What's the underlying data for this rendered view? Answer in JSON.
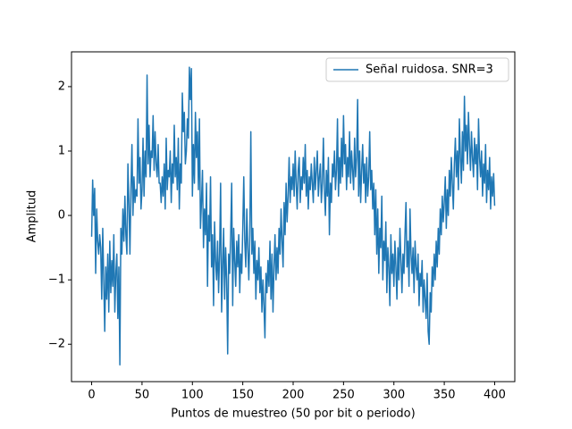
{
  "chart_data": {
    "type": "line",
    "xlabel": "Puntos de muestreo (50 por bit o periodo)",
    "ylabel": "Amplitud",
    "xlim": [
      -20,
      420
    ],
    "ylim": [
      -2.58,
      2.54
    ],
    "xticks": [
      0,
      50,
      100,
      150,
      200,
      250,
      300,
      350,
      400
    ],
    "yticks": [
      {
        "value": -2,
        "label": "−2"
      },
      {
        "value": -1,
        "label": "−1"
      },
      0,
      1,
      2
    ],
    "legend": "upper right",
    "x": [
      0,
      1,
      2,
      3,
      4,
      5,
      6,
      7,
      8,
      9,
      10,
      11,
      12,
      13,
      14,
      15,
      16,
      17,
      18,
      19,
      20,
      21,
      22,
      23,
      24,
      25,
      26,
      27,
      28,
      29,
      30,
      31,
      32,
      33,
      34,
      35,
      36,
      37,
      38,
      39,
      40,
      41,
      42,
      43,
      44,
      45,
      46,
      47,
      48,
      49,
      50,
      51,
      52,
      53,
      54,
      55,
      56,
      57,
      58,
      59,
      60,
      61,
      62,
      63,
      64,
      65,
      66,
      67,
      68,
      69,
      70,
      71,
      72,
      73,
      74,
      75,
      76,
      77,
      78,
      79,
      80,
      81,
      82,
      83,
      84,
      85,
      86,
      87,
      88,
      89,
      90,
      91,
      92,
      93,
      94,
      95,
      96,
      97,
      98,
      99,
      100,
      101,
      102,
      103,
      104,
      105,
      106,
      107,
      108,
      109,
      110,
      111,
      112,
      113,
      114,
      115,
      116,
      117,
      118,
      119,
      120,
      121,
      122,
      123,
      124,
      125,
      126,
      127,
      128,
      129,
      130,
      131,
      132,
      133,
      134,
      135,
      136,
      137,
      138,
      139,
      140,
      141,
      142,
      143,
      144,
      145,
      146,
      147,
      148,
      149,
      150,
      151,
      152,
      153,
      154,
      155,
      156,
      157,
      158,
      159,
      160,
      161,
      162,
      163,
      164,
      165,
      166,
      167,
      168,
      169,
      170,
      171,
      172,
      173,
      174,
      175,
      176,
      177,
      178,
      179,
      180,
      181,
      182,
      183,
      184,
      185,
      186,
      187,
      188,
      189,
      190,
      191,
      192,
      193,
      194,
      195,
      196,
      197,
      198,
      199,
      200,
      201,
      202,
      203,
      204,
      205,
      206,
      207,
      208,
      209,
      210,
      211,
      212,
      213,
      214,
      215,
      216,
      217,
      218,
      219,
      220,
      221,
      222,
      223,
      224,
      225,
      226,
      227,
      228,
      229,
      230,
      231,
      232,
      233,
      234,
      235,
      236,
      237,
      238,
      239,
      240,
      241,
      242,
      243,
      244,
      245,
      246,
      247,
      248,
      249,
      250,
      251,
      252,
      253,
      254,
      255,
      256,
      257,
      258,
      259,
      260,
      261,
      262,
      263,
      264,
      265,
      266,
      267,
      268,
      269,
      270,
      271,
      272,
      273,
      274,
      275,
      276,
      277,
      278,
      279,
      280,
      281,
      282,
      283,
      284,
      285,
      286,
      287,
      288,
      289,
      290,
      291,
      292,
      293,
      294,
      295,
      296,
      297,
      298,
      299,
      300,
      301,
      302,
      303,
      304,
      305,
      306,
      307,
      308,
      309,
      310,
      311,
      312,
      313,
      314,
      315,
      316,
      317,
      318,
      319,
      320,
      321,
      322,
      323,
      324,
      325,
      326,
      327,
      328,
      329,
      330,
      331,
      332,
      333,
      334,
      335,
      336,
      337,
      338,
      339,
      340,
      341,
      342,
      343,
      344,
      345,
      346,
      347,
      348,
      349,
      350,
      351,
      352,
      353,
      354,
      355,
      356,
      357,
      358,
      359,
      360,
      361,
      362,
      363,
      364,
      365,
      366,
      367,
      368,
      369,
      370,
      371,
      372,
      373,
      374,
      375,
      376,
      377,
      378,
      379,
      380,
      381,
      382,
      383,
      384,
      385,
      386,
      387,
      388,
      389,
      390,
      391,
      392,
      393,
      394,
      395,
      396,
      397,
      398,
      399,
      400
    ],
    "series": [
      {
        "name": "Señal ruidosa. SNR=3",
        "color": "#1f77b4",
        "values": [
          -0.33,
          0.55,
          0.0,
          0.42,
          -0.9,
          0.1,
          -0.4,
          -0.6,
          -0.3,
          -0.5,
          -1.3,
          -0.2,
          -1.0,
          -1.8,
          -0.8,
          -1.3,
          -0.6,
          -1.5,
          -0.4,
          -1.2,
          -0.7,
          -1.1,
          -0.3,
          -1.5,
          -0.9,
          -0.6,
          -1.6,
          -0.8,
          -2.32,
          -0.2,
          -0.6,
          0.1,
          -0.4,
          0.3,
          -0.3,
          -0.6,
          0.8,
          0.2,
          -0.6,
          0.4,
          1.1,
          0.0,
          0.6,
          0.2,
          0.4,
          0.3,
          1.5,
          0.5,
          0.9,
          0.1,
          0.4,
          1.2,
          0.3,
          1.0,
          0.6,
          2.18,
          0.8,
          1.4,
          0.6,
          1.0,
          0.9,
          1.55,
          0.7,
          1.3,
          0.8,
          0.6,
          1.1,
          0.5,
          0.5,
          0.2,
          0.6,
          0.3,
          0.8,
          0.1,
          1.2,
          0.4,
          0.7,
          0.6,
          1.0,
          0.2,
          0.8,
          0.5,
          1.4,
          0.6,
          0.9,
          0.4,
          1.2,
          0.1,
          0.8,
          0.5,
          1.9,
          1.3,
          1.6,
          0.8,
          1.0,
          1.5,
          1.2,
          2.3,
          1.8,
          2.28,
          0.3,
          1.1,
          0.5,
          1.6,
          0.9,
          1.3,
          0.4,
          1.5,
          -0.2,
          0.2,
          0.7,
          -0.5,
          0.1,
          -0.3,
          0.5,
          -1.1,
          0.0,
          -0.4,
          0.6,
          -0.8,
          -0.3,
          -1.4,
          -0.1,
          -0.7,
          -1.0,
          -0.4,
          -1.2,
          -0.6,
          0.5,
          -1.5,
          -0.8,
          -0.2,
          -1.3,
          -0.5,
          -1.0,
          -2.15,
          -0.6,
          -0.9,
          -0.3,
          0.5,
          -1.4,
          -0.2,
          -0.7,
          -1.1,
          -0.4,
          -0.8,
          -0.3,
          -1.2,
          -0.6,
          -0.9,
          -0.2,
          0.6,
          -0.4,
          -0.8,
          0.1,
          -0.5,
          -1.0,
          -0.3,
          1.3,
          -0.6,
          -0.2,
          -0.9,
          -0.4,
          -1.3,
          -0.7,
          -1.0,
          -0.5,
          -1.2,
          -0.8,
          -1.5,
          -1.0,
          -1.4,
          -1.9,
          -0.9,
          -1.2,
          -0.7,
          -1.1,
          -0.4,
          -1.3,
          -0.6,
          -1.5,
          -0.8,
          -0.3,
          -1.0,
          -0.5,
          -0.9,
          -0.2,
          -0.6,
          0.1,
          -0.4,
          -0.8,
          0.2,
          -0.3,
          0.5,
          -0.1,
          0.3,
          0.9,
          0.2,
          0.6,
          0.4,
          0.8,
          0.3,
          1.0,
          0.5,
          0.1,
          0.7,
          0.9,
          0.2,
          0.6,
          0.4,
          0.9,
          0.5,
          1.1,
          0.3,
          0.7,
          0.1,
          0.6,
          0.4,
          0.8,
          0.5,
          0.2,
          0.9,
          0.4,
          0.7,
          1.0,
          0.3,
          0.6,
          0.8,
          0.2,
          0.5,
          1.2,
          0.4,
          0.0,
          0.7,
          0.3,
          0.9,
          -0.3,
          0.5,
          0.2,
          0.8,
          0.6,
          1.0,
          0.4,
          0.7,
          1.5,
          0.3,
          0.9,
          0.5,
          1.2,
          0.6,
          1.55,
          0.8,
          1.1,
          0.4,
          0.9,
          0.6,
          1.3,
          0.5,
          1.0,
          0.7,
          0.4,
          1.2,
          0.6,
          0.9,
          1.8,
          0.3,
          1.0,
          0.2,
          0.7,
          1.1,
          0.5,
          0.8,
          0.2,
          0.9,
          0.3,
          0.6,
          1.3,
          0.4,
          0.7,
          0.1,
          0.5,
          -0.3,
          0.4,
          -0.6,
          0.1,
          -0.9,
          -0.2,
          -0.5,
          0.3,
          -1.0,
          -0.4,
          -0.7,
          -0.1,
          -1.2,
          -0.5,
          -0.8,
          -1.4,
          -0.3,
          -0.9,
          -0.6,
          -1.1,
          -0.4,
          -0.8,
          -1.3,
          -0.5,
          -1.0,
          -0.2,
          -0.7,
          -1.2,
          -0.6,
          -0.9,
          -0.3,
          0.2,
          -0.8,
          -0.4,
          -1.1,
          0.1,
          -0.6,
          -0.9,
          -0.5,
          -1.2,
          -0.4,
          -0.8,
          -1.0,
          -0.6,
          -1.4,
          -0.9,
          -1.1,
          -0.7,
          -1.5,
          -1.0,
          -1.3,
          -1.6,
          -0.9,
          -1.8,
          -2.0,
          -1.2,
          -1.5,
          -0.8,
          -1.1,
          -0.6,
          -1.0,
          -0.4,
          -0.8,
          -0.2,
          -0.6,
          0.1,
          -0.3,
          0.3,
          -0.1,
          0.2,
          0.6,
          -0.2,
          0.4,
          0.0,
          0.7,
          0.3,
          0.9,
          0.5,
          0.1,
          0.8,
          1.2,
          0.6,
          1.0,
          0.4,
          1.5,
          0.9,
          0.5,
          1.3,
          0.7,
          1.85,
          1.0,
          1.4,
          0.8,
          1.6,
          1.1,
          0.7,
          1.3,
          0.9,
          0.6,
          1.2,
          0.8,
          1.1,
          0.4,
          1.5,
          0.9,
          0.6,
          1.0,
          0.3,
          0.8,
          0.5,
          1.1,
          0.2,
          0.7,
          0.4,
          0.9,
          0.1,
          0.6,
          0.3,
          0.65,
          0.15
        ]
      }
    ]
  }
}
